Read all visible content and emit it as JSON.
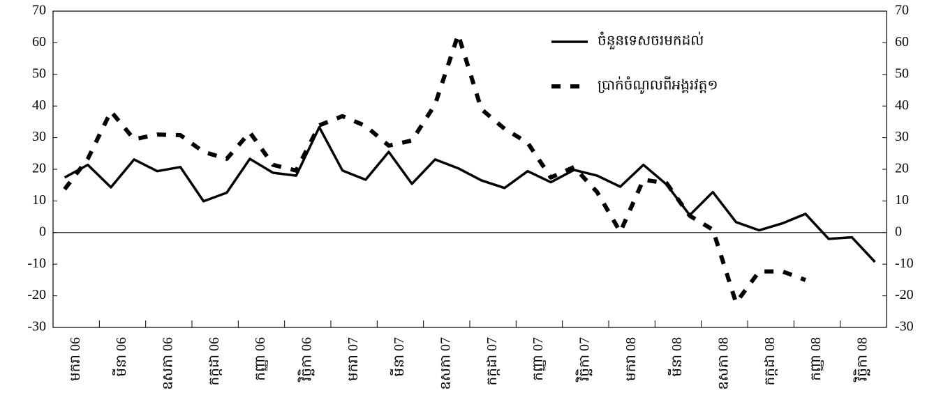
{
  "chart_data": {
    "type": "line",
    "categories": [
      "មករា 06",
      null,
      "មីនា 06",
      null,
      "ឧសភា 06",
      null,
      "កក្កដា 06",
      null,
      "កញ្ញា 06",
      null,
      "វិច្ឆិកា 06",
      null,
      "មករា 07",
      null,
      "មីនា 07",
      null,
      "ឧសភា 07",
      null,
      "កក្កដា 07",
      null,
      "កញ្ញា 07",
      null,
      "វិច្ឆិកា 07",
      null,
      "មករា 08",
      null,
      "មីនា 08",
      null,
      "ឧសភា 08",
      null,
      "កក្កដា 08",
      null,
      "កញ្ញា 08",
      null,
      "វិច្ឆិកា 08",
      null
    ],
    "series": [
      {
        "name": "ចំនួនទេសចរមកដល់",
        "color": "#000000",
        "style": "solid",
        "values": [
          17.4,
          21.4,
          14.3,
          23.1,
          19.4,
          20.7,
          9.9,
          12.6,
          23.3,
          18.9,
          18.0,
          33.3,
          19.6,
          16.7,
          25.5,
          15.4,
          23.1,
          20.3,
          16.5,
          14.1,
          19.4,
          15.9,
          19.8,
          18.0,
          14.5,
          21.4,
          15.2,
          5.5,
          12.8,
          3.3,
          0.7,
          2.9,
          5.9,
          -2.0,
          -1.5,
          -9.3
        ]
      },
      {
        "name": "ប្រាក់ចំណូលពីអង្គរវត្ត១",
        "color": "#000000",
        "style": "dashed",
        "values": [
          13.7,
          23.3,
          38.3,
          29.5,
          31.0,
          30.8,
          25.5,
          23.3,
          31.7,
          21.4,
          19.6,
          33.9,
          36.8,
          33.7,
          27.5,
          29.1,
          40.5,
          62.6,
          39.0,
          32.8,
          28.4,
          17.4,
          20.7,
          12.8,
          0.2,
          16.7,
          15.6,
          5.3,
          0.9,
          -22.2,
          -12.3,
          -12.3,
          -15.0,
          null,
          null,
          null
        ]
      }
    ],
    "ylim": [
      -30,
      70
    ],
    "yticks": [
      -30,
      -20,
      -10,
      0,
      10,
      20,
      30,
      40,
      50,
      60,
      70
    ],
    "y2lim": [
      -30,
      70
    ],
    "y2ticks": [
      -30,
      -20,
      -10,
      0,
      10,
      20,
      30,
      40,
      50,
      60,
      70
    ],
    "zero_line": true,
    "legend": "top-right"
  }
}
